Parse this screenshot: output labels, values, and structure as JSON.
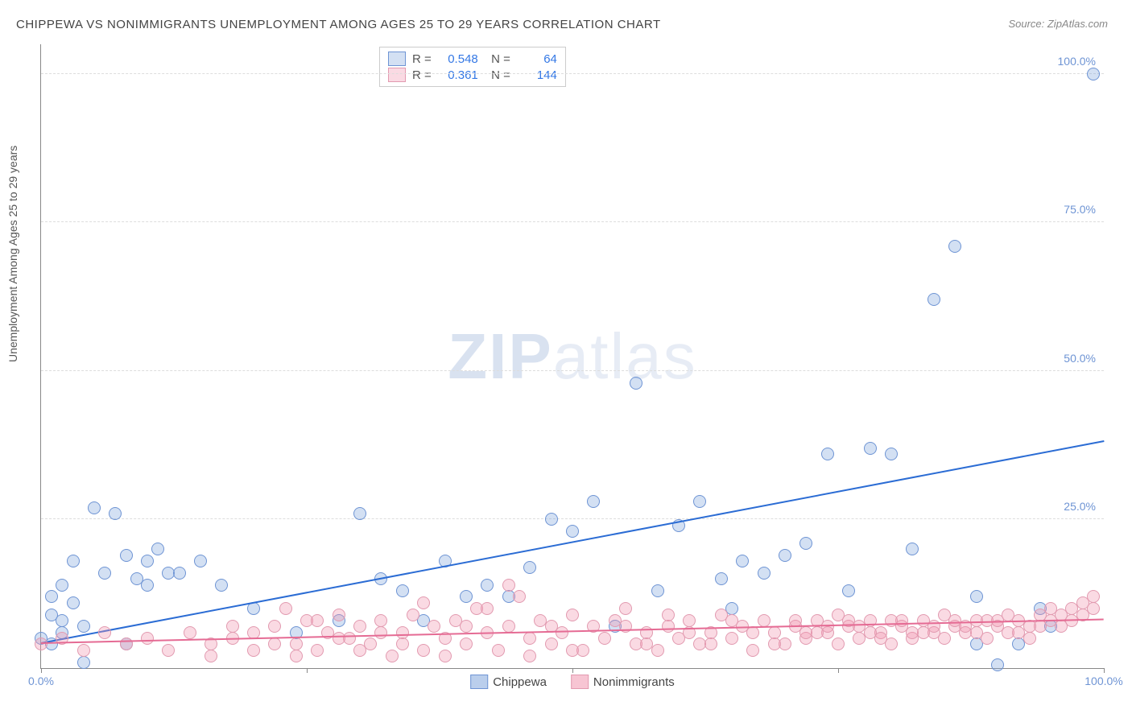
{
  "title": "CHIPPEWA VS NONIMMIGRANTS UNEMPLOYMENT AMONG AGES 25 TO 29 YEARS CORRELATION CHART",
  "source": "Source: ZipAtlas.com",
  "ylabel": "Unemployment Among Ages 25 to 29 years",
  "watermark_a": "ZIP",
  "watermark_b": "atlas",
  "chart": {
    "type": "scatter",
    "xlim": [
      0,
      100
    ],
    "ylim": [
      0,
      105
    ],
    "xticks": [
      0,
      25,
      50,
      75,
      100
    ],
    "yticks": [
      25,
      50,
      75,
      100
    ],
    "xtick_labels": [
      "0.0%",
      "",
      "",
      "",
      "100.0%"
    ],
    "ytick_labels": [
      "25.0%",
      "50.0%",
      "75.0%",
      "100.0%"
    ],
    "grid_y": [
      25,
      50,
      75,
      100
    ],
    "background_color": "#ffffff",
    "grid_color": "#dddddd",
    "axis_color": "#888888",
    "marker_radius": 8,
    "series": [
      {
        "name": "Chippewa",
        "fill": "rgba(130,165,220,0.35)",
        "stroke": "#6e94d4",
        "R": "0.548",
        "N": "64",
        "trend": {
          "x1": 0,
          "y1": 4,
          "x2": 100,
          "y2": 38,
          "color": "#2b6cd4"
        },
        "points": [
          [
            0,
            5
          ],
          [
            1,
            4
          ],
          [
            1,
            9
          ],
          [
            1,
            12
          ],
          [
            2,
            14
          ],
          [
            2,
            8
          ],
          [
            2,
            6
          ],
          [
            3,
            11
          ],
          [
            3,
            18
          ],
          [
            4,
            7
          ],
          [
            5,
            27
          ],
          [
            6,
            16
          ],
          [
            7,
            26
          ],
          [
            8,
            19
          ],
          [
            9,
            15
          ],
          [
            10,
            18
          ],
          [
            10,
            14
          ],
          [
            11,
            20
          ],
          [
            12,
            16
          ],
          [
            13,
            16
          ],
          [
            15,
            18
          ],
          [
            17,
            14
          ],
          [
            4,
            1
          ],
          [
            8,
            4
          ],
          [
            30,
            26
          ],
          [
            32,
            15
          ],
          [
            34,
            13
          ],
          [
            38,
            18
          ],
          [
            40,
            12
          ],
          [
            42,
            14
          ],
          [
            44,
            12
          ],
          [
            46,
            17
          ],
          [
            48,
            25
          ],
          [
            50,
            23
          ],
          [
            52,
            28
          ],
          [
            54,
            7
          ],
          [
            56,
            48
          ],
          [
            58,
            13
          ],
          [
            60,
            24
          ],
          [
            62,
            28
          ],
          [
            64,
            15
          ],
          [
            66,
            18
          ],
          [
            68,
            16
          ],
          [
            70,
            19
          ],
          [
            72,
            21
          ],
          [
            74,
            36
          ],
          [
            76,
            13
          ],
          [
            78,
            37
          ],
          [
            80,
            36
          ],
          [
            82,
            20
          ],
          [
            84,
            62
          ],
          [
            86,
            71
          ],
          [
            88,
            4
          ],
          [
            88,
            12
          ],
          [
            90,
            0.5
          ],
          [
            92,
            4
          ],
          [
            94,
            10
          ],
          [
            95,
            7
          ],
          [
            99,
            100
          ],
          [
            65,
            10
          ],
          [
            24,
            6
          ],
          [
            28,
            8
          ],
          [
            36,
            8
          ],
          [
            20,
            10
          ]
        ]
      },
      {
        "name": "Nonimmigrants",
        "fill": "rgba(240,150,175,0.35)",
        "stroke": "#e29ab0",
        "R": "0.361",
        "N": "144",
        "trend": {
          "x1": 0,
          "y1": 4,
          "x2": 100,
          "y2": 8,
          "color": "#e56b94"
        },
        "points": [
          [
            0,
            4
          ],
          [
            2,
            5
          ],
          [
            4,
            3
          ],
          [
            6,
            6
          ],
          [
            8,
            4
          ],
          [
            10,
            5
          ],
          [
            12,
            3
          ],
          [
            14,
            6
          ],
          [
            16,
            4
          ],
          [
            18,
            5
          ],
          [
            20,
            6
          ],
          [
            22,
            7
          ],
          [
            23,
            10
          ],
          [
            24,
            4
          ],
          [
            25,
            8
          ],
          [
            26,
            3
          ],
          [
            27,
            6
          ],
          [
            28,
            9
          ],
          [
            29,
            5
          ],
          [
            30,
            7
          ],
          [
            31,
            4
          ],
          [
            32,
            8
          ],
          [
            33,
            2
          ],
          [
            34,
            6
          ],
          [
            35,
            9
          ],
          [
            36,
            3
          ],
          [
            37,
            7
          ],
          [
            38,
            5
          ],
          [
            39,
            8
          ],
          [
            40,
            4
          ],
          [
            41,
            10
          ],
          [
            42,
            6
          ],
          [
            43,
            3
          ],
          [
            44,
            7
          ],
          [
            45,
            12
          ],
          [
            46,
            5
          ],
          [
            47,
            8
          ],
          [
            48,
            4
          ],
          [
            49,
            6
          ],
          [
            50,
            9
          ],
          [
            51,
            3
          ],
          [
            52,
            7
          ],
          [
            53,
            5
          ],
          [
            54,
            8
          ],
          [
            55,
            10
          ],
          [
            56,
            4
          ],
          [
            57,
            6
          ],
          [
            58,
            3
          ],
          [
            59,
            7
          ],
          [
            60,
            5
          ],
          [
            61,
            8
          ],
          [
            62,
            4
          ],
          [
            63,
            6
          ],
          [
            64,
            9
          ],
          [
            65,
            5
          ],
          [
            66,
            7
          ],
          [
            67,
            3
          ],
          [
            68,
            8
          ],
          [
            69,
            6
          ],
          [
            70,
            4
          ],
          [
            71,
            7
          ],
          [
            72,
            5
          ],
          [
            73,
            8
          ],
          [
            74,
            6
          ],
          [
            75,
            4
          ],
          [
            76,
            7
          ],
          [
            77,
            5
          ],
          [
            78,
            8
          ],
          [
            79,
            6
          ],
          [
            80,
            4
          ],
          [
            81,
            7
          ],
          [
            82,
            5
          ],
          [
            83,
            8
          ],
          [
            84,
            6
          ],
          [
            85,
            5
          ],
          [
            86,
            7
          ],
          [
            87,
            6
          ],
          [
            88,
            8
          ],
          [
            89,
            5
          ],
          [
            90,
            7
          ],
          [
            91,
            6
          ],
          [
            92,
            8
          ],
          [
            93,
            5
          ],
          [
            94,
            7
          ],
          [
            95,
            8
          ],
          [
            96,
            9
          ],
          [
            97,
            10
          ],
          [
            97,
            8
          ],
          [
            98,
            11
          ],
          [
            98,
            9
          ],
          [
            99,
            12
          ],
          [
            99,
            10
          ],
          [
            44,
            14
          ],
          [
            46,
            2
          ],
          [
            48,
            7
          ],
          [
            50,
            3
          ],
          [
            40,
            7
          ],
          [
            42,
            10
          ],
          [
            38,
            2
          ],
          [
            36,
            11
          ],
          [
            34,
            4
          ],
          [
            32,
            6
          ],
          [
            30,
            3
          ],
          [
            28,
            5
          ],
          [
            26,
            8
          ],
          [
            24,
            2
          ],
          [
            22,
            4
          ],
          [
            20,
            3
          ],
          [
            18,
            7
          ],
          [
            16,
            2
          ],
          [
            55,
            7
          ],
          [
            57,
            4
          ],
          [
            59,
            9
          ],
          [
            61,
            6
          ],
          [
            63,
            4
          ],
          [
            65,
            8
          ],
          [
            67,
            6
          ],
          [
            69,
            4
          ],
          [
            71,
            8
          ],
          [
            73,
            6
          ],
          [
            75,
            9
          ],
          [
            77,
            7
          ],
          [
            79,
            5
          ],
          [
            81,
            8
          ],
          [
            83,
            6
          ],
          [
            85,
            9
          ],
          [
            87,
            7
          ],
          [
            89,
            8
          ],
          [
            91,
            9
          ],
          [
            93,
            7
          ],
          [
            95,
            10
          ],
          [
            96,
            7
          ],
          [
            94,
            9
          ],
          [
            92,
            6
          ],
          [
            90,
            8
          ],
          [
            88,
            6
          ],
          [
            86,
            8
          ],
          [
            84,
            7
          ],
          [
            82,
            6
          ],
          [
            80,
            8
          ],
          [
            78,
            6
          ],
          [
            76,
            8
          ],
          [
            74,
            7
          ],
          [
            72,
            6
          ]
        ]
      }
    ]
  },
  "legend": [
    {
      "label": "Chippewa",
      "fill": "rgba(130,165,220,0.55)",
      "stroke": "#6e94d4"
    },
    {
      "label": "Nonimmigrants",
      "fill": "rgba(240,150,175,0.55)",
      "stroke": "#e29ab0"
    }
  ]
}
